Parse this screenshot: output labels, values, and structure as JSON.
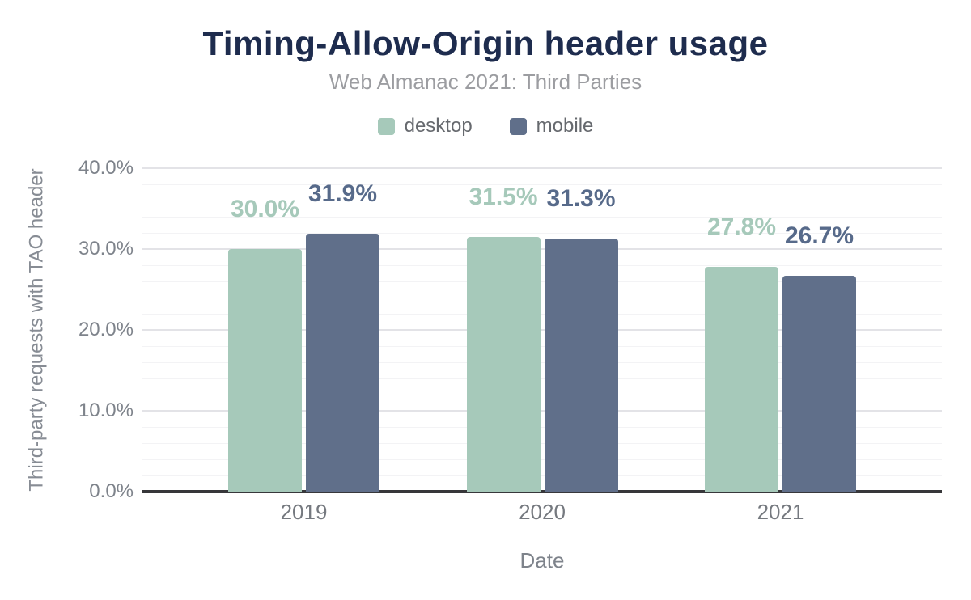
{
  "header": {
    "title": "Timing-Allow-Origin header usage",
    "subtitle": "Web Almanac 2021: Third Parties"
  },
  "colors": {
    "title": "#1e2c4e",
    "desktop": "#a6c9ba",
    "mobile": "#606f8a",
    "desktop_label": "#a6c9ba",
    "mobile_label": "#576a8a",
    "axis_line": "#37373a"
  },
  "chart_data": {
    "type": "bar",
    "title": "Timing-Allow-Origin header usage",
    "subtitle": "Web Almanac 2021: Third Parties",
    "categories": [
      "2019",
      "2020",
      "2021"
    ],
    "series": [
      {
        "name": "desktop",
        "color": "#a6c9ba",
        "label_color": "#a6c9ba",
        "values": [
          30.0,
          31.5,
          27.8
        ],
        "labels": [
          "30.0%",
          "31.5%",
          "27.8%"
        ]
      },
      {
        "name": "mobile",
        "color": "#606f8a",
        "label_color": "#576a8a",
        "values": [
          31.9,
          31.3,
          26.7
        ],
        "labels": [
          "31.9%",
          "31.3%",
          "26.7%"
        ]
      }
    ],
    "xlabel": "Date",
    "ylabel": "Third-party requests with TAO header",
    "ylim": [
      0,
      40
    ],
    "yticks": [
      {
        "value": 0,
        "label": "0.0%"
      },
      {
        "value": 10,
        "label": "10.0%"
      },
      {
        "value": 20,
        "label": "20.0%"
      },
      {
        "value": 30,
        "label": "30.0%"
      },
      {
        "value": 40,
        "label": "40.0%"
      }
    ],
    "minor_tick_step": 2,
    "major_tick_step": 10,
    "grid": true,
    "legend_position": "top"
  }
}
